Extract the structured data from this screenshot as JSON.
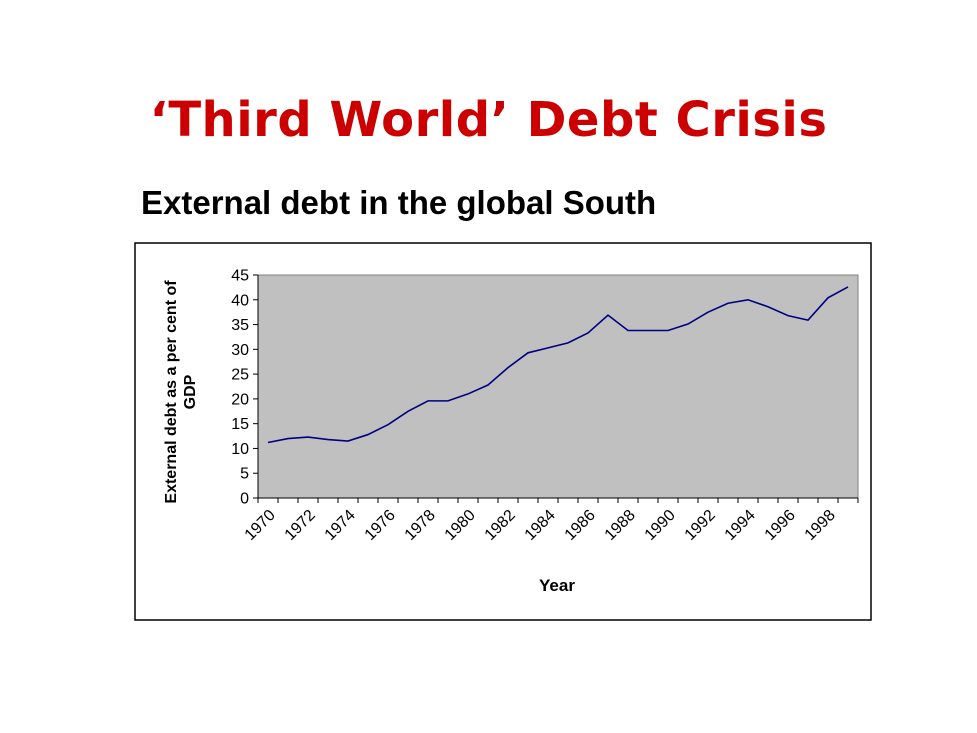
{
  "slide": {
    "title": "‘Third World’ Debt Crisis",
    "subtitle": "External debt in the global South"
  },
  "colors": {
    "title": "#cc0000",
    "plot_background": "#c0c0c0",
    "line": "#000080"
  },
  "chart_data": {
    "type": "line",
    "title": "",
    "xlabel": "Year",
    "ylabel": "External debt as a per cent of GDP",
    "ylim": [
      0,
      45
    ],
    "yticks": [
      0,
      5,
      10,
      15,
      20,
      25,
      30,
      35,
      40,
      45
    ],
    "x_tick_labels": [
      "1970",
      "1972",
      "1974",
      "1976",
      "1978",
      "1980",
      "1982",
      "1984",
      "1986",
      "1988",
      "1990",
      "1992",
      "1994",
      "1996",
      "1998"
    ],
    "grid": false,
    "legend": "none",
    "x": [
      1970,
      1971,
      1972,
      1973,
      1974,
      1975,
      1976,
      1977,
      1978,
      1979,
      1980,
      1981,
      1982,
      1983,
      1984,
      1985,
      1986,
      1987,
      1988,
      1989,
      1990,
      1991,
      1992,
      1993,
      1994,
      1995,
      1996,
      1997,
      1998,
      1999
    ],
    "series": [
      {
        "values": [
          11.2,
          12.0,
          12.3,
          11.8,
          11.5,
          12.8,
          14.8,
          17.5,
          19.6,
          19.6,
          21.0,
          22.8,
          26.3,
          29.3,
          30.3,
          31.3,
          33.3,
          36.9,
          33.8,
          33.8,
          33.8,
          35.1,
          37.5,
          39.3,
          40.0,
          38.6,
          36.8,
          35.9,
          40.4,
          42.6
        ]
      }
    ]
  }
}
